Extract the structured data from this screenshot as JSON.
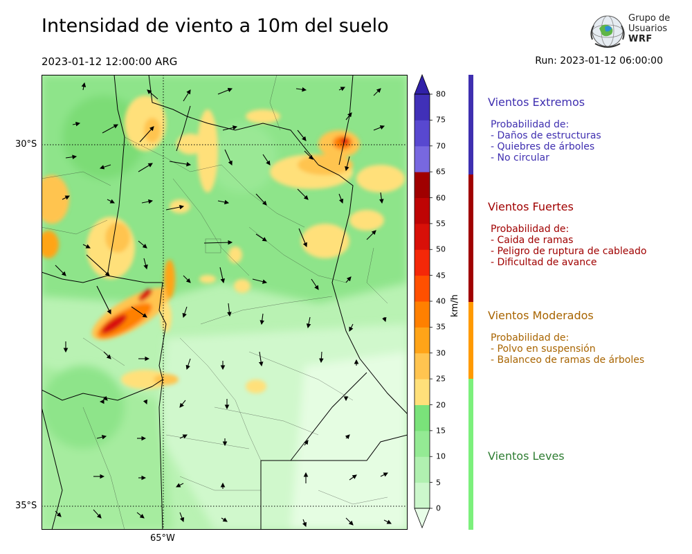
{
  "header": {
    "title": "Intensidad de viento a 10m del suelo",
    "valid_time": "2023-01-12 12:00:00 ARG",
    "run": "Run: 2023-01-12 06:00:00"
  },
  "logo": {
    "line1": "Grupo de",
    "line2": "Usuarios",
    "line3": "WRF"
  },
  "map": {
    "lat_labels": [
      "30°S",
      "35°S"
    ],
    "lon_labels": [
      "65°W"
    ]
  },
  "colorbar": {
    "unit": "km/h",
    "ticks": [
      "0",
      "5",
      "10",
      "15",
      "20",
      "25",
      "30",
      "35",
      "40",
      "45",
      "50",
      "55",
      "60",
      "65",
      "70",
      "75",
      "80"
    ],
    "colors": [
      "#e8fde8",
      "#ccf7cc",
      "#b0f0b0",
      "#94ea94",
      "#7ae27a",
      "#ffe07a",
      "#ffc450",
      "#ffa418",
      "#ff8000",
      "#ff5000",
      "#f42808",
      "#d81008",
      "#be0404",
      "#a00000",
      "#7868e0",
      "#5848d0",
      "#4030b8",
      "#3020a8"
    ]
  },
  "legend": {
    "categories": [
      {
        "name": "Vientos Extremos",
        "color": "#3f2fb0",
        "desc_header": "Probabilidad de:",
        "items": [
          "- Daños de estructuras",
          "- Quiebres de árboles",
          "- No circular"
        ]
      },
      {
        "name": "Vientos Fuertes",
        "color": "#a00000",
        "desc_header": "Probabilidad de:",
        "items": [
          "- Caida de ramas",
          "- Peligro de ruptura de cableado",
          "- Dificultad de avance"
        ]
      },
      {
        "name": "Vientos Moderados",
        "color": "#a86400",
        "desc_header": "Probabilidad de:",
        "items": [
          "- Polvo en suspensión",
          "- Balanceo de ramas de árboles"
        ]
      },
      {
        "name": "Vientos Leves",
        "color": "#2e7d32",
        "desc_header": "",
        "items": []
      }
    ],
    "bar_colors": [
      "#3f2fb0",
      "#a00000",
      "#ff9a00",
      "#7cf07c"
    ]
  }
}
